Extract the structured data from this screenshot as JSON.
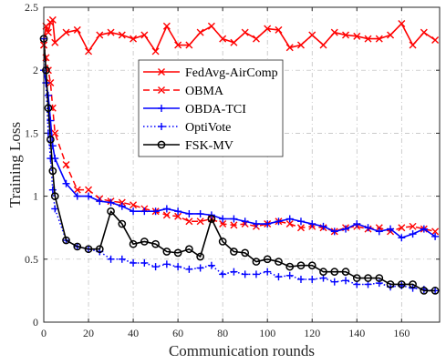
{
  "chart_data": {
    "type": "line",
    "title": "",
    "xlabel": "Communication rounds",
    "ylabel": "Training Loss",
    "xlim": [
      0,
      177
    ],
    "ylim": [
      0,
      2.5
    ],
    "xticks": [
      0,
      20,
      40,
      60,
      80,
      100,
      120,
      140,
      160
    ],
    "yticks": [
      0,
      0.5,
      1,
      1.5,
      2,
      2.5
    ],
    "ytick_labels": [
      "0",
      "0.5",
      "1",
      "1.5",
      "2",
      "2.5"
    ],
    "grid": true,
    "legend_position": "upper-center",
    "series": [
      {
        "name": "FedAvg-AirComp",
        "color": "#ff0000",
        "line": "solid",
        "marker": "x",
        "x": [
          0,
          1,
          2,
          3,
          4,
          5,
          10,
          15,
          20,
          25,
          30,
          35,
          40,
          45,
          50,
          55,
          60,
          65,
          70,
          75,
          80,
          85,
          90,
          95,
          100,
          105,
          110,
          115,
          120,
          125,
          130,
          135,
          140,
          145,
          150,
          155,
          160,
          165,
          170,
          175
        ],
        "y": [
          2.2,
          2.35,
          2.3,
          2.38,
          2.4,
          2.22,
          2.3,
          2.32,
          2.15,
          2.28,
          2.3,
          2.28,
          2.25,
          2.28,
          2.15,
          2.35,
          2.2,
          2.2,
          2.3,
          2.35,
          2.25,
          2.22,
          2.3,
          2.25,
          2.33,
          2.32,
          2.18,
          2.2,
          2.28,
          2.2,
          2.3,
          2.28,
          2.27,
          2.25,
          2.25,
          2.28,
          2.37,
          2.2,
          2.3,
          2.24
        ]
      },
      {
        "name": "OBMA",
        "color": "#ff0000",
        "line": "dashed",
        "marker": "x",
        "x": [
          0,
          1,
          2,
          3,
          4,
          5,
          10,
          15,
          20,
          25,
          30,
          35,
          40,
          45,
          50,
          55,
          60,
          65,
          70,
          75,
          80,
          85,
          90,
          95,
          100,
          105,
          110,
          115,
          120,
          125,
          130,
          135,
          140,
          145,
          150,
          155,
          160,
          165,
          170,
          175
        ],
        "y": [
          2.2,
          2.1,
          2.0,
          1.9,
          1.7,
          1.5,
          1.25,
          1.05,
          1.05,
          0.98,
          0.96,
          0.95,
          0.93,
          0.9,
          0.88,
          0.85,
          0.84,
          0.8,
          0.8,
          0.82,
          0.78,
          0.77,
          0.78,
          0.76,
          0.78,
          0.8,
          0.78,
          0.75,
          0.76,
          0.75,
          0.72,
          0.75,
          0.76,
          0.74,
          0.75,
          0.72,
          0.75,
          0.76,
          0.74,
          0.72
        ]
      },
      {
        "name": "OBDA-TCI",
        "color": "#0000ff",
        "line": "solid",
        "marker": "+",
        "x": [
          0,
          1,
          2,
          3,
          4,
          5,
          10,
          15,
          20,
          25,
          30,
          35,
          40,
          45,
          50,
          55,
          60,
          65,
          70,
          75,
          80,
          85,
          90,
          95,
          100,
          105,
          110,
          115,
          120,
          125,
          130,
          135,
          140,
          145,
          150,
          155,
          160,
          165,
          170,
          175
        ],
        "y": [
          2.0,
          1.9,
          1.8,
          1.6,
          1.4,
          1.3,
          1.1,
          1.0,
          1.0,
          0.96,
          0.95,
          0.92,
          0.88,
          0.88,
          0.88,
          0.9,
          0.88,
          0.86,
          0.86,
          0.85,
          0.82,
          0.82,
          0.8,
          0.78,
          0.78,
          0.8,
          0.82,
          0.8,
          0.78,
          0.76,
          0.72,
          0.74,
          0.78,
          0.75,
          0.72,
          0.74,
          0.67,
          0.7,
          0.74,
          0.68
        ]
      },
      {
        "name": "OptiVote",
        "color": "#0000ff",
        "line": "dotted",
        "marker": "+",
        "x": [
          0,
          1,
          2,
          3,
          4,
          5,
          10,
          15,
          20,
          25,
          30,
          35,
          40,
          45,
          50,
          55,
          60,
          65,
          70,
          75,
          80,
          85,
          90,
          95,
          100,
          105,
          110,
          115,
          120,
          125,
          130,
          135,
          140,
          145,
          150,
          155,
          160,
          165,
          170,
          175
        ],
        "y": [
          2.25,
          1.9,
          1.5,
          1.3,
          1.05,
          0.9,
          0.65,
          0.6,
          0.58,
          0.56,
          0.5,
          0.5,
          0.47,
          0.47,
          0.44,
          0.46,
          0.44,
          0.42,
          0.43,
          0.45,
          0.38,
          0.4,
          0.38,
          0.38,
          0.4,
          0.36,
          0.37,
          0.34,
          0.34,
          0.35,
          0.32,
          0.33,
          0.3,
          0.3,
          0.31,
          0.28,
          0.29,
          0.27,
          0.26,
          0.25
        ]
      },
      {
        "name": "FSK-MV",
        "color": "#000000",
        "line": "solid",
        "marker": "circle",
        "x": [
          0,
          1,
          2,
          3,
          4,
          5,
          10,
          15,
          20,
          25,
          30,
          35,
          40,
          45,
          50,
          55,
          60,
          65,
          70,
          75,
          80,
          85,
          90,
          95,
          100,
          105,
          110,
          115,
          120,
          125,
          130,
          135,
          140,
          145,
          150,
          155,
          160,
          165,
          170,
          175
        ],
        "y": [
          2.25,
          2.0,
          1.7,
          1.45,
          1.2,
          1.0,
          0.65,
          0.6,
          0.58,
          0.58,
          0.88,
          0.78,
          0.62,
          0.64,
          0.62,
          0.56,
          0.55,
          0.58,
          0.52,
          0.82,
          0.64,
          0.56,
          0.55,
          0.48,
          0.5,
          0.48,
          0.44,
          0.45,
          0.45,
          0.4,
          0.4,
          0.4,
          0.35,
          0.35,
          0.35,
          0.3,
          0.3,
          0.3,
          0.25,
          0.25
        ]
      }
    ]
  }
}
